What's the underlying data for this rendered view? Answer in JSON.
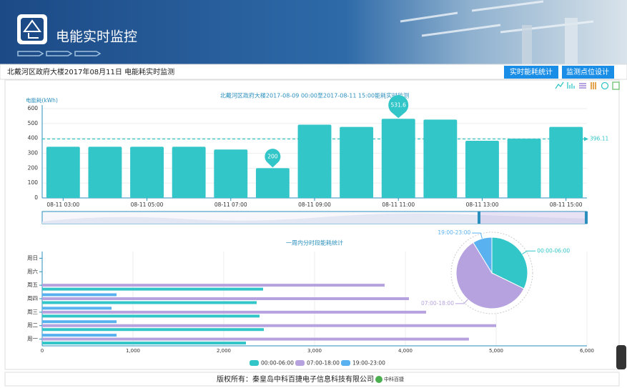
{
  "header": {
    "title": "电能实时监控"
  },
  "toolbar": {
    "caption": "北戴河区政府大楼2017年08月11日 电能耗实时监测",
    "buttons": [
      "实时能耗统计",
      "监测点位设计"
    ]
  },
  "chart_data": [
    {
      "type": "bar",
      "title": "北戴河区政府大楼2017-08-09 00:00至2017-08-11 15:00能耗实时监测",
      "y_label": "电能耗(kWh)",
      "categories": [
        "08-11 03:00",
        null,
        "08-11 05:00",
        null,
        "08-11 07:00",
        null,
        "08-11 09:00",
        null,
        "08-11 11:00",
        null,
        "08-11 13:00",
        null,
        "08-11 15:00"
      ],
      "values": [
        344,
        344,
        344,
        344,
        325,
        200,
        492,
        477,
        531.6,
        526,
        384,
        398,
        477
      ],
      "color": "#33c6c8",
      "mark_line": 396.11,
      "ylim": [
        0,
        600
      ],
      "yticks": [
        0,
        100,
        200,
        300,
        400,
        500,
        600
      ],
      "grid": true
    },
    {
      "type": "hbar",
      "title": "一周内分时段能耗统计",
      "categories": [
        "周一",
        "周二",
        "周三",
        "周四",
        "周五",
        "周六",
        "周日"
      ],
      "series": [
        {
          "name": "00:00-06:00",
          "color": "#33c6c8",
          "values": [
            2244,
            2441,
            2394,
            2362,
            2433,
            0,
            0
          ]
        },
        {
          "name": "07:00-18:00",
          "color": "#b6a2de",
          "values": [
            4700,
            5000,
            4228,
            4039,
            3772,
            0,
            0
          ]
        },
        {
          "name": "19:00-23:00",
          "color": "#5ab1ef",
          "values": [
            819,
            819,
            764,
            819,
            0,
            0,
            0
          ]
        }
      ],
      "xlim": [
        0,
        6000
      ],
      "xticks": [
        0,
        {
          "value": 1000,
          "label": "1,000"
        },
        {
          "value": 2000,
          "label": "2,000"
        },
        {
          "value": 3000,
          "label": "3,000"
        },
        {
          "value": 4000,
          "label": "4,000"
        },
        {
          "value": 5000,
          "label": "5,000"
        },
        {
          "value": 6000,
          "label": "6,000"
        }
      ],
      "grid": true,
      "legend": "bottom",
      "inset_pie": true
    }
  ],
  "footer": {
    "copyright": "版权所有：秦皇岛中科百捷电子信息科技有限公司",
    "logo_text": "中科百捷"
  }
}
